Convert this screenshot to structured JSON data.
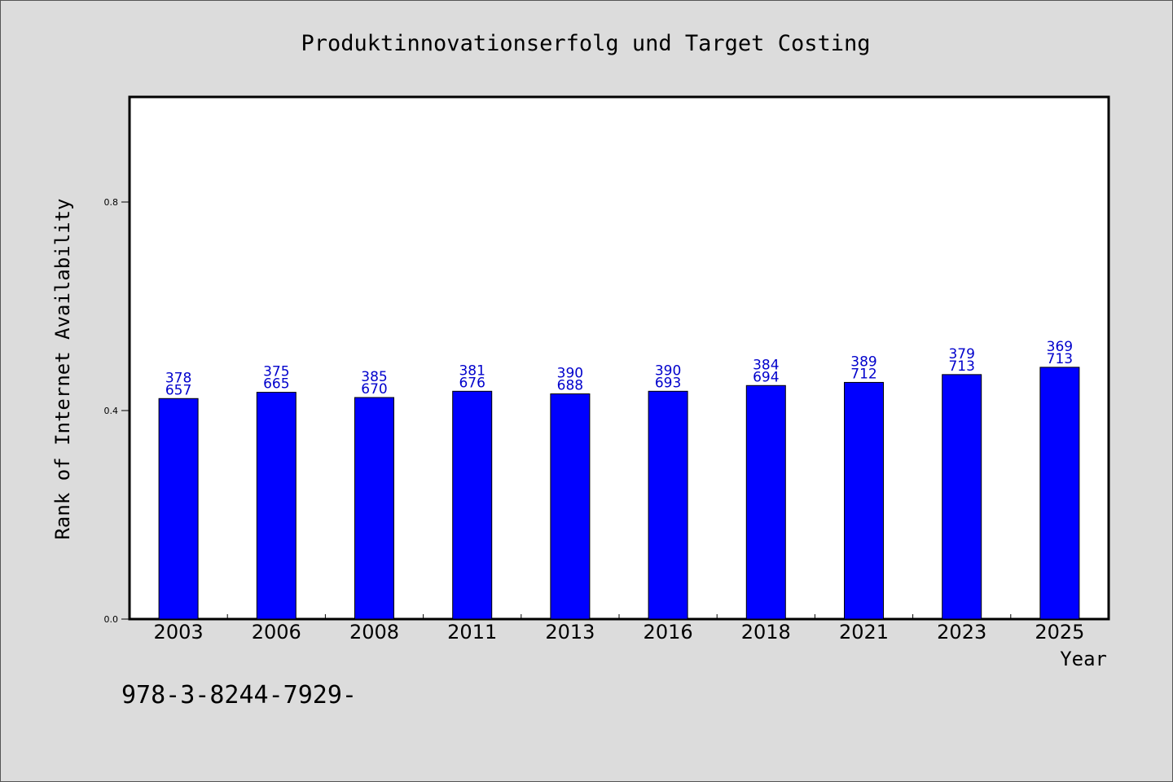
{
  "chart_data": {
    "type": "bar",
    "title": "Produktinnovationserfolg und Target Costing",
    "xlabel": "Year",
    "ylabel": "Rank of Internet Availability",
    "categories": [
      "2003",
      "2006",
      "2008",
      "2011",
      "2013",
      "2016",
      "2018",
      "2021",
      "2023",
      "2025"
    ],
    "series": [
      {
        "values": [
          0.423,
          0.435,
          0.425,
          0.437,
          0.432,
          0.437,
          0.448,
          0.454,
          0.469,
          0.483
        ],
        "label_top": [
          "378",
          "375",
          "385",
          "381",
          "390",
          "390",
          "384",
          "389",
          "379",
          "369"
        ],
        "label_bottom": [
          "657",
          "665",
          "670",
          "676",
          "688",
          "693",
          "694",
          "712",
          "713",
          "713"
        ],
        "color": "#0000ff"
      }
    ],
    "ylim": [
      0,
      1.0
    ],
    "yticks": [
      "0.0",
      "0.4",
      "0.8"
    ],
    "ytick_values": [
      0.0,
      0.4,
      0.8
    ],
    "grid": false,
    "legend": "none"
  },
  "footer": {
    "text": "978-3-8244-7929-"
  },
  "colors": {
    "background": "#dcdcdc",
    "plot_background": "#ffffff",
    "bar": "#0000ff",
    "data_label": "#0000cc"
  }
}
